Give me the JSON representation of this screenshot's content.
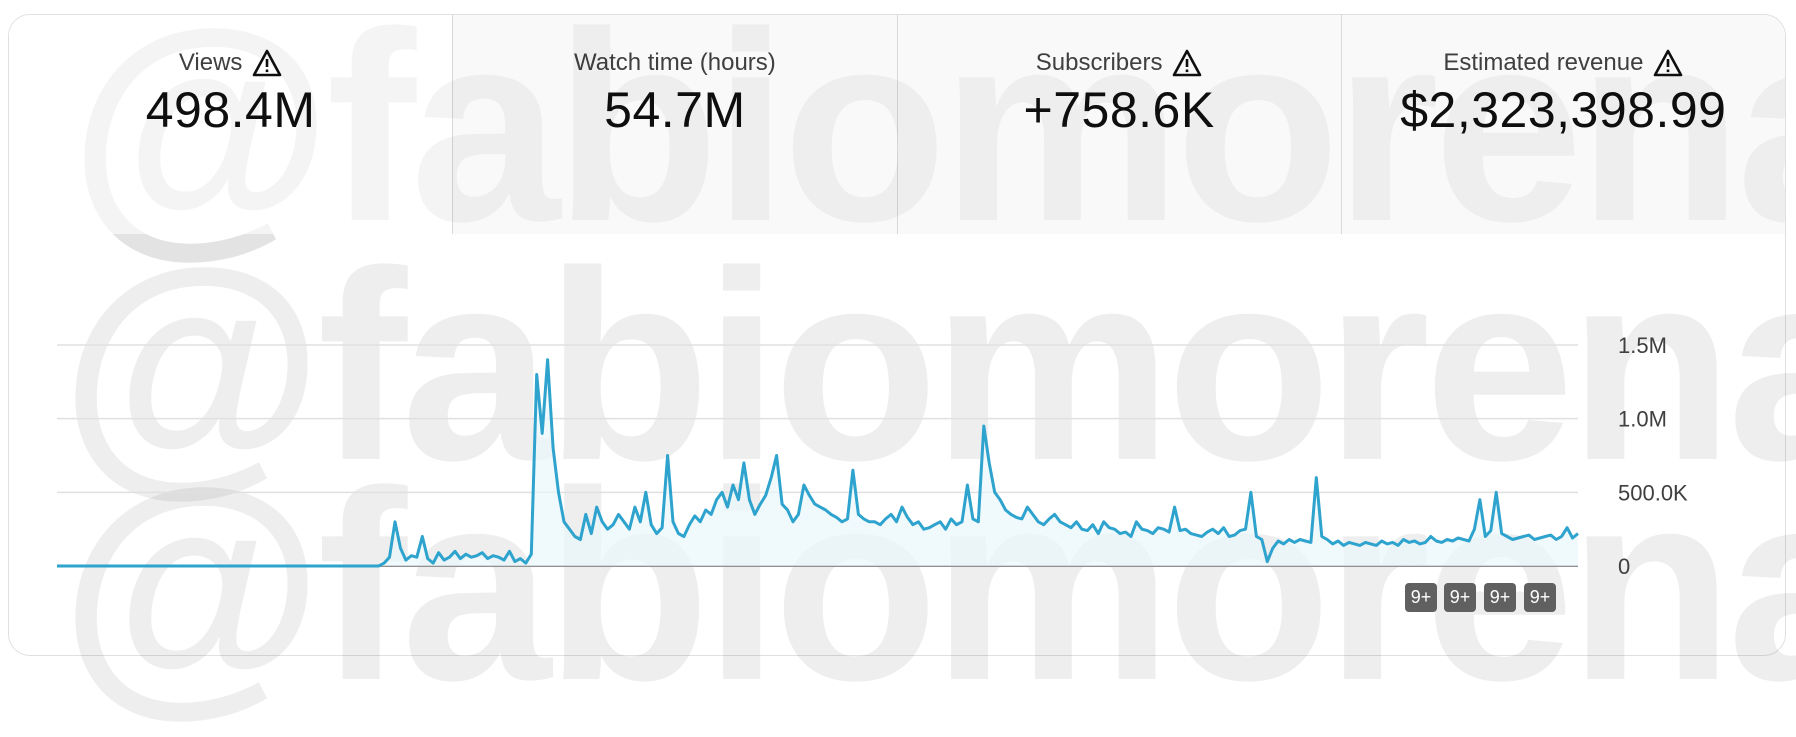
{
  "metrics": [
    {
      "label": "Views",
      "value": "498.4M",
      "warning": true
    },
    {
      "label": "Watch time (hours)",
      "value": "54.7M",
      "warning": false
    },
    {
      "label": "Subscribers",
      "value": "+758.6K",
      "warning": true
    },
    {
      "label": "Estimated revenue",
      "value": "$2,323,398.99",
      "warning": true
    }
  ],
  "watermark": "@fabiomorena",
  "badges": [
    "9+",
    "9+",
    "9+",
    "9+"
  ],
  "colors": {
    "line": "#2ea3cd",
    "fill": "#eaf6fb",
    "grid": "#e0e0e0",
    "baseline": "#909090"
  },
  "chart_data": {
    "type": "line",
    "series": [
      {
        "values": [
          0,
          0,
          0,
          0,
          0,
          0,
          0,
          0,
          0,
          0,
          0,
          0,
          0,
          0,
          0,
          0,
          0,
          0,
          0,
          0,
          0,
          0,
          0,
          0,
          0,
          0,
          0,
          0,
          0,
          0,
          0,
          0,
          0,
          0,
          0,
          0,
          0,
          0,
          0,
          0,
          0,
          0,
          0,
          0,
          0,
          0,
          0,
          0,
          0,
          0,
          0,
          0,
          0,
          0,
          0,
          0,
          0,
          0,
          0,
          0,
          20000,
          60000,
          300000,
          120000,
          40000,
          70000,
          60000,
          200000,
          50000,
          20000,
          90000,
          40000,
          60000,
          100000,
          50000,
          80000,
          60000,
          70000,
          90000,
          50000,
          70000,
          60000,
          40000,
          100000,
          30000,
          50000,
          20000,
          80000,
          1300000,
          900000,
          1400000,
          800000,
          500000,
          300000,
          250000,
          200000,
          180000,
          350000,
          220000,
          400000,
          300000,
          250000,
          280000,
          350000,
          300000,
          250000,
          400000,
          300000,
          500000,
          280000,
          220000,
          260000,
          750000,
          300000,
          220000,
          200000,
          280000,
          340000,
          300000,
          380000,
          350000,
          450000,
          500000,
          400000,
          550000,
          450000,
          700000,
          450000,
          350000,
          420000,
          480000,
          600000,
          750000,
          420000,
          380000,
          300000,
          350000,
          550000,
          480000,
          420000,
          400000,
          380000,
          350000,
          330000,
          300000,
          320000,
          650000,
          350000,
          320000,
          300000,
          300000,
          280000,
          320000,
          350000,
          300000,
          400000,
          330000,
          280000,
          300000,
          250000,
          260000,
          280000,
          300000,
          250000,
          320000,
          280000,
          300000,
          550000,
          320000,
          300000,
          950000,
          700000,
          500000,
          450000,
          380000,
          350000,
          330000,
          320000,
          400000,
          350000,
          300000,
          280000,
          320000,
          350000,
          300000,
          280000,
          260000,
          300000,
          250000,
          240000,
          280000,
          220000,
          300000,
          260000,
          250000,
          220000,
          230000,
          200000,
          300000,
          250000,
          240000,
          220000,
          260000,
          250000,
          230000,
          400000,
          240000,
          250000,
          220000,
          210000,
          200000,
          230000,
          250000,
          220000,
          260000,
          200000,
          210000,
          240000,
          250000,
          500000,
          200000,
          180000,
          30000,
          120000,
          170000,
          150000,
          180000,
          160000,
          180000,
          170000,
          160000,
          600000,
          200000,
          180000,
          150000,
          170000,
          140000,
          160000,
          150000,
          140000,
          160000,
          150000,
          140000,
          170000,
          150000,
          160000,
          140000,
          180000,
          160000,
          170000,
          150000,
          160000,
          200000,
          170000,
          160000,
          180000,
          170000,
          190000,
          180000,
          170000,
          250000,
          450000,
          200000,
          240000,
          500000,
          220000,
          200000,
          180000,
          190000,
          200000,
          210000,
          180000,
          190000,
          200000,
          210000,
          180000,
          200000,
          260000,
          190000,
          220000
        ]
      }
    ],
    "ylim": [
      0,
      1500000
    ],
    "yticks": [
      "0",
      "500.0K",
      "1.0M",
      "1.5M"
    ],
    "grid": true
  }
}
